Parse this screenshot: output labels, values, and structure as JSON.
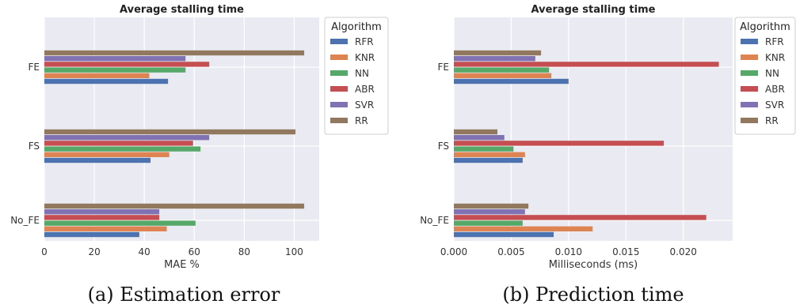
{
  "colors": {
    "RFR": "#4c72b0",
    "KNR": "#dd8452",
    "NN": "#55a868",
    "ABR": "#c44e52",
    "SVR": "#8172b3",
    "RR": "#937860",
    "plot_bg": "#eaeaf2",
    "grid": "#ffffff"
  },
  "captions": [
    "(a) Estimation error",
    "(b) Prediction time"
  ],
  "chart_data": [
    {
      "type": "bar",
      "orientation": "horizontal",
      "title": "Average stalling time",
      "xlabel": "MAE %",
      "ylabel": "",
      "xlim": [
        0,
        110
      ],
      "xticks": [
        0,
        20,
        40,
        60,
        80,
        100
      ],
      "xtick_labels": [
        "0",
        "20",
        "40",
        "60",
        "80",
        "100"
      ],
      "categories": [
        "FE",
        "FS",
        "No_FE"
      ],
      "grid": true,
      "legend": {
        "title": "Algorithm",
        "placement": "outside-right"
      },
      "series": [
        {
          "name": "RFR",
          "values": [
            49.5,
            42.5,
            38
          ]
        },
        {
          "name": "KNR",
          "values": [
            42,
            50,
            49
          ]
        },
        {
          "name": "NN",
          "values": [
            56.5,
            62.5,
            60.5
          ]
        },
        {
          "name": "ABR",
          "values": [
            66,
            59.5,
            46
          ]
        },
        {
          "name": "SVR",
          "values": [
            56.5,
            66,
            46
          ]
        },
        {
          "name": "RR",
          "values": [
            104,
            100.5,
            104
          ]
        }
      ]
    },
    {
      "type": "bar",
      "orientation": "horizontal",
      "title": "Average stalling time",
      "xlabel": "Milliseconds (ms)",
      "ylabel": "",
      "xlim": [
        0,
        0.0243
      ],
      "xticks": [
        0,
        0.005,
        0.01,
        0.015,
        0.02
      ],
      "xtick_labels": [
        "0.000",
        "0.005",
        "0.010",
        "0.015",
        "0.020"
      ],
      "categories": [
        "FE",
        "FS",
        "No_FE"
      ],
      "grid": true,
      "legend": {
        "title": "Algorithm",
        "placement": "outside-right"
      },
      "series": [
        {
          "name": "RFR",
          "values": [
            0.01,
            0.006,
            0.0087
          ]
        },
        {
          "name": "KNR",
          "values": [
            0.0085,
            0.0062,
            0.0121
          ]
        },
        {
          "name": "NN",
          "values": [
            0.0083,
            0.0052,
            0.006
          ]
        },
        {
          "name": "ABR",
          "values": [
            0.0231,
            0.0183,
            0.022
          ]
        },
        {
          "name": "SVR",
          "values": [
            0.0071,
            0.0044,
            0.0062
          ]
        },
        {
          "name": "RR",
          "values": [
            0.0076,
            0.0038,
            0.0065
          ]
        }
      ]
    }
  ]
}
